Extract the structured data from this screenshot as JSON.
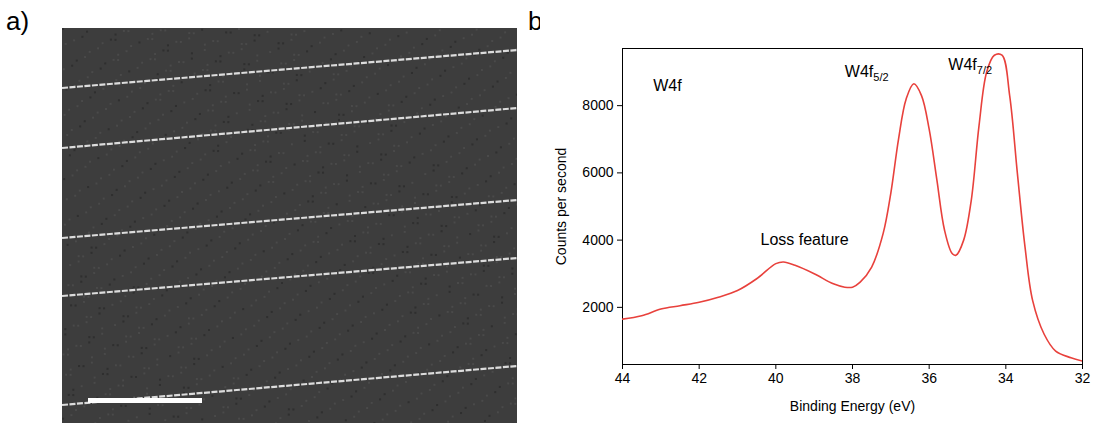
{
  "image_panel": {
    "label": "a)"
  },
  "chart_data": {
    "type": "line",
    "panel_label": "b)",
    "x_label": "Binding Energy (eV)",
    "y_label": "Counts per second",
    "xlim": [
      44,
      32
    ],
    "xticks": [
      44,
      42,
      40,
      38,
      36,
      34,
      32
    ],
    "ylim": [
      300,
      9700
    ],
    "yticks": [
      2000,
      4000,
      6000,
      8000
    ],
    "grid": false,
    "color": "#e8413c",
    "x": [
      44,
      43.5,
      43,
      42.5,
      42,
      41.5,
      41,
      40.5,
      40,
      39.8,
      39.5,
      39,
      38.5,
      38.2,
      38,
      37.8,
      37.5,
      37.2,
      37,
      36.8,
      36.6,
      36.4,
      36.2,
      36,
      35.8,
      35.6,
      35.4,
      35.3,
      35.1,
      34.9,
      34.7,
      34.5,
      34.3,
      34.1,
      33.9,
      33.7,
      33.5,
      33.3,
      33,
      32.7,
      32.3,
      32
    ],
    "values": [
      1650,
      1750,
      1950,
      2050,
      2150,
      2300,
      2500,
      2850,
      3300,
      3350,
      3250,
      3000,
      2700,
      2600,
      2600,
      2750,
      3200,
      4200,
      5400,
      7000,
      8200,
      8650,
      8300,
      7300,
      5800,
      4300,
      3600,
      3550,
      4000,
      5200,
      7400,
      9000,
      9500,
      9500,
      8300,
      6000,
      3800,
      2200,
      1200,
      700,
      500,
      400
    ],
    "annotations": [
      {
        "text": "W4f",
        "x": 43.2,
        "y": 8600
      },
      {
        "text": "Loss feature",
        "x": 40.4,
        "y": 4000
      },
      {
        "text": "W4f",
        "sub": "5/2",
        "x": 38.2,
        "y": 9000
      },
      {
        "text": "W4f",
        "sub": "7/2",
        "x": 35.5,
        "y": 9200
      }
    ]
  }
}
